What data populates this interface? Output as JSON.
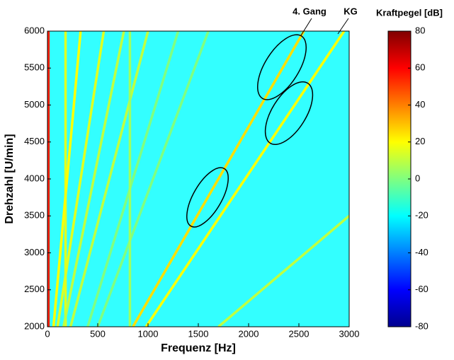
{
  "chart_data": {
    "type": "heatmap",
    "xlabel": "Frequenz [Hz]",
    "ylabel": "Drehzahl [U/min]",
    "xlim": [
      0,
      3000
    ],
    "ylim": [
      2000,
      6000
    ],
    "xticks": [
      0,
      500,
      1000,
      1500,
      2000,
      2500,
      3000
    ],
    "yticks": [
      2000,
      2500,
      3000,
      3500,
      4000,
      4500,
      5000,
      5500,
      6000
    ],
    "colorbar": {
      "label": "Kraftpegel [dB]",
      "lim": [
        -80,
        80
      ],
      "ticks": [
        -80,
        -60,
        -40,
        -20,
        0,
        20,
        40,
        60,
        80
      ]
    },
    "annotations": [
      "4. Gang",
      "KG"
    ],
    "background_level": -20,
    "ridges": [
      {
        "x": [
          10,
          10
        ],
        "y": [
          2000,
          6000
        ],
        "value": 55
      },
      {
        "x": [
          180,
          180
        ],
        "y": [
          2000,
          6000
        ],
        "value": 15
      },
      {
        "x": [
          60,
          330
        ],
        "y": [
          2000,
          6000
        ],
        "value": 20
      },
      {
        "x": [
          100,
          560
        ],
        "y": [
          2000,
          6000
        ],
        "value": 15
      },
      {
        "x": [
          160,
          760
        ],
        "y": [
          2000,
          6000
        ],
        "value": 10
      },
      {
        "x": [
          230,
          1000
        ],
        "y": [
          2000,
          6000
        ],
        "value": 10
      },
      {
        "x": [
          400,
          1300
        ],
        "y": [
          2000,
          6000
        ],
        "value": 0
      },
      {
        "x": [
          500,
          1600
        ],
        "y": [
          2000,
          6000
        ],
        "value": 0
      },
      {
        "x": [
          820,
          820
        ],
        "y": [
          2000,
          6000
        ],
        "value": 5
      },
      {
        "x": [
          850,
          2550
        ],
        "y": [
          2000,
          6000
        ],
        "value": 25
      },
      {
        "x": [
          980,
          2950
        ],
        "y": [
          2000,
          6000
        ],
        "value": 20
      },
      {
        "x": [
          1700,
          3000
        ],
        "y": [
          2000,
          3500
        ],
        "value": 10
      }
    ]
  }
}
